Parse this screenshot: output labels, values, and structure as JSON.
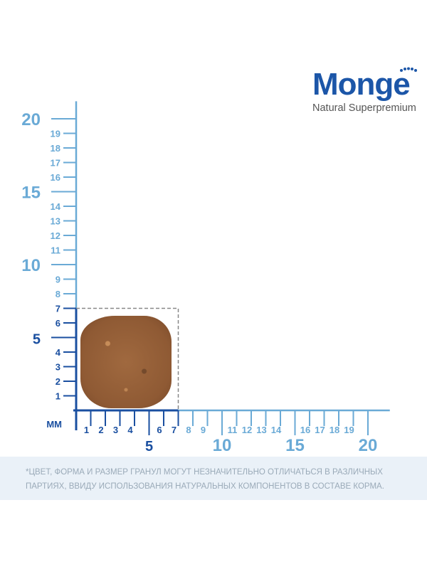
{
  "brand": {
    "name": "Monge",
    "tagline": "Natural Superpremium"
  },
  "ruler": {
    "unit_label": "мм",
    "max_mm": 20,
    "dark_color": "#1a4fa0",
    "light_color": "#6aaad6",
    "dashed_color": "#888888",
    "kibble_size_mm": [
      7,
      7
    ],
    "y_small_labels": [
      "1",
      "2",
      "3",
      "4",
      "6",
      "7",
      "8",
      "9",
      "11",
      "12",
      "13",
      "14",
      "16",
      "17",
      "18",
      "19"
    ],
    "y_major_labels": [
      "5",
      "10",
      "15",
      "20"
    ],
    "x_small_labels": [
      "1",
      "2",
      "3",
      "4",
      "6",
      "7",
      "8",
      "9",
      "11",
      "12",
      "13",
      "14",
      "16",
      "17",
      "18",
      "19"
    ],
    "x_major_labels": [
      "5",
      "10",
      "15",
      "20"
    ]
  },
  "footer": {
    "disclaimer": "*ЦВЕТ, ФОРМА И РАЗМЕР ГРАНУЛ МОГУТ НЕЗНАЧИТЕЛЬНО ОТЛИЧАТЬСЯ В РАЗЛИЧНЫХ ПАРТИЯХ, ВВИДУ ИСПОЛЬЗОВАНИЯ НАТУРАЛЬНЫХ КОМПОНЕНТОВ В СОСТАВЕ КОРМА."
  }
}
